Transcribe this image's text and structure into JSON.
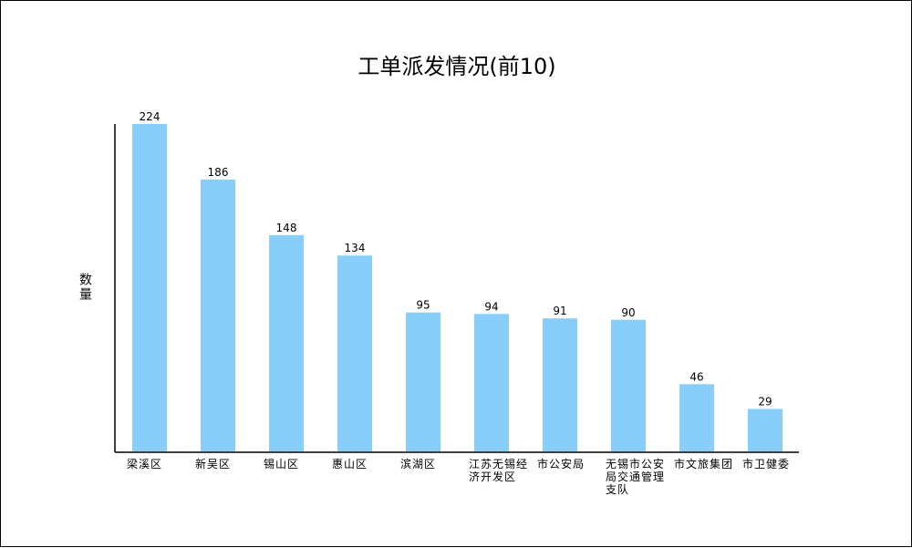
{
  "chart_data": {
    "type": "bar",
    "title": "工单派发情况(前10)",
    "ylabel": "数量",
    "xlabel": "",
    "categories": [
      "梁溪区",
      "新吴区",
      "锡山区",
      "惠山区",
      "滨湖区",
      "江苏无锡经济开发区",
      "市公安局",
      "无锡市公安局交通管理支队",
      "市文旅集团",
      "市卫健委"
    ],
    "values": [
      224,
      186,
      148,
      134,
      95,
      94,
      91,
      90,
      46,
      29
    ],
    "ylim": [
      0,
      224
    ],
    "grid": false,
    "bar_color": "#87CEFA",
    "data_labels": true
  }
}
